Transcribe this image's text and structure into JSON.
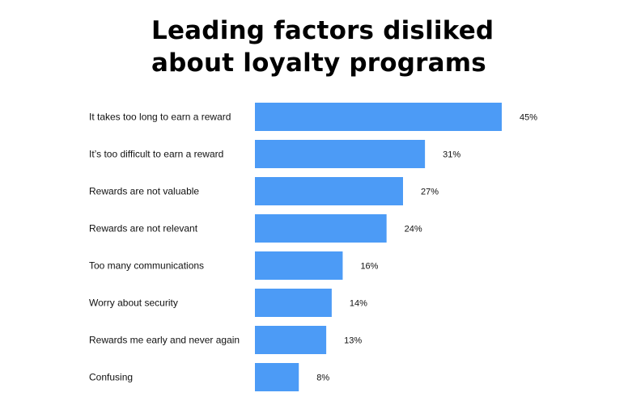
{
  "chart_data": {
    "type": "bar",
    "orientation": "horizontal",
    "title_lines": [
      "Leading factors disliked",
      "about loyalty programs"
    ],
    "categories": [
      "It takes too long to earn a reward",
      "It’s too difficult to earn a reward",
      "Rewards are not valuable",
      "Rewards are not relevant",
      "Too many communications",
      "Worry about security",
      "Rewards me early and never again",
      "Confusing"
    ],
    "values": [
      45,
      31,
      27,
      24,
      16,
      14,
      13,
      8
    ],
    "value_labels": [
      "45%",
      "31%",
      "27%",
      "24%",
      "16%",
      "14%",
      "13%",
      "8%"
    ],
    "unit": "%",
    "bar_color": "#4c9bf6",
    "grid": false,
    "legend": "none"
  }
}
